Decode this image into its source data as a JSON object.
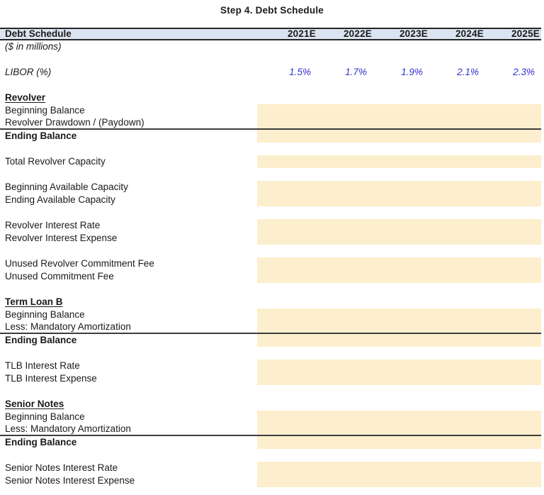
{
  "title": "Step 4. Debt Schedule",
  "subtitle": "($ in millions)",
  "header": {
    "label": "Debt Schedule",
    "years": [
      "2021E",
      "2022E",
      "2023E",
      "2024E",
      "2025E"
    ]
  },
  "libor": {
    "label": "LIBOR (%)",
    "values": [
      "1.5%",
      "1.7%",
      "1.9%",
      "2.1%",
      "2.3%"
    ]
  },
  "sections": [
    {
      "heading": "Revolver",
      "rows": [
        {
          "label": "Beginning Balance"
        },
        {
          "label": "Revolver Drawdown / (Paydown)"
        },
        {
          "label": "Ending Balance"
        },
        {
          "label": "Total Revolver Capacity"
        },
        {
          "label": "Beginning Available Capacity"
        },
        {
          "label": "Ending Available Capacity"
        },
        {
          "label": "Revolver Interest Rate"
        },
        {
          "label": "Revolver Interest Expense"
        },
        {
          "label": "Unused Revolver Commitment Fee"
        },
        {
          "label": "Unused Commitment Fee"
        }
      ]
    },
    {
      "heading": "Term Loan B",
      "rows": [
        {
          "label": "Beginning Balance"
        },
        {
          "label": "Less: Mandatory Amortization"
        },
        {
          "label": "Ending Balance"
        },
        {
          "label": "TLB Interest Rate"
        },
        {
          "label": "TLB Interest Expense"
        }
      ]
    },
    {
      "heading": "Senior Notes",
      "rows": [
        {
          "label": "Beginning Balance"
        },
        {
          "label": "Less: Mandatory Amortization"
        },
        {
          "label": "Ending Balance"
        },
        {
          "label": "Senior Notes Interest Rate"
        },
        {
          "label": "Senior Notes Interest Expense"
        }
      ]
    }
  ],
  "colors": {
    "header_bg": "#DBE5F1",
    "input_cell_bg": "#FDEFCD",
    "input_text_blue": "#3333CC",
    "rule_line": "#3D3D3D"
  }
}
